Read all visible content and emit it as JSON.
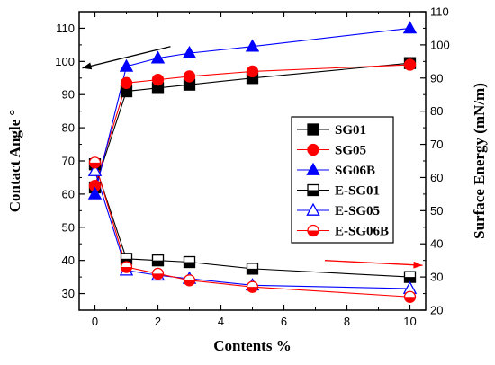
{
  "chart_data": {
    "type": "line",
    "xlabel": "Contents %",
    "ylabel_left": "Contact Angle °",
    "ylabel_right": "Surface Energy (mN/m)",
    "xlim": [
      -0.5,
      10.5
    ],
    "ylim_left": [
      25,
      115
    ],
    "ylim_right": [
      20,
      110
    ],
    "xticks": [
      0,
      2,
      4,
      6,
      8,
      10
    ],
    "yticks_left": [
      30,
      40,
      50,
      60,
      70,
      80,
      90,
      100,
      110
    ],
    "yticks_right": [
      20,
      30,
      40,
      50,
      60,
      70,
      80,
      90,
      100,
      110
    ],
    "legend_position": "right-middle",
    "series": [
      {
        "name": "SG01",
        "axis": "left",
        "marker": "square",
        "fill": "solid",
        "color": "#000000",
        "x": [
          0,
          1,
          2,
          3,
          5,
          10
        ],
        "y": [
          62,
          91,
          92,
          93,
          95,
          99.5
        ]
      },
      {
        "name": "SG05",
        "axis": "left",
        "marker": "circle",
        "fill": "solid",
        "color": "#ff0000",
        "x": [
          0,
          1,
          2,
          3,
          5,
          10
        ],
        "y": [
          62.5,
          93.5,
          94.5,
          95.5,
          97,
          99
        ]
      },
      {
        "name": "SG06B",
        "axis": "left",
        "marker": "triangle",
        "fill": "solid",
        "color": "#0000ff",
        "x": [
          0,
          1,
          2,
          3,
          5,
          10
        ],
        "y": [
          60,
          98.5,
          101,
          102.5,
          104.5,
          110
        ]
      },
      {
        "name": "E-SG01",
        "axis": "right",
        "marker": "square",
        "fill": "half",
        "color": "#000000",
        "x": [
          0,
          1,
          2,
          3,
          5,
          10
        ],
        "y": [
          64,
          35.5,
          35,
          34.5,
          32.5,
          30
        ]
      },
      {
        "name": "E-SG05",
        "axis": "right",
        "marker": "triangle",
        "fill": "open",
        "color": "#0000ff",
        "x": [
          0,
          1,
          2,
          3,
          5,
          10
        ],
        "y": [
          62,
          32,
          30.5,
          29.5,
          27.5,
          26.5
        ]
      },
      {
        "name": "E-SG06B",
        "axis": "right",
        "marker": "circle",
        "fill": "half",
        "color": "#ff0000",
        "x": [
          0,
          1,
          2,
          3,
          5,
          10
        ],
        "y": [
          64.5,
          33,
          31,
          29,
          27,
          24
        ]
      }
    ],
    "arrows": [
      {
        "color": "#000000",
        "points_to": "left-axis",
        "from": [
          2.4,
          104.5
        ],
        "to": [
          -0.4,
          98
        ]
      },
      {
        "color": "#ff0000",
        "points_to": "right-axis",
        "from": [
          7.3,
          35
        ],
        "to": [
          10.4,
          33.5
        ]
      }
    ]
  }
}
